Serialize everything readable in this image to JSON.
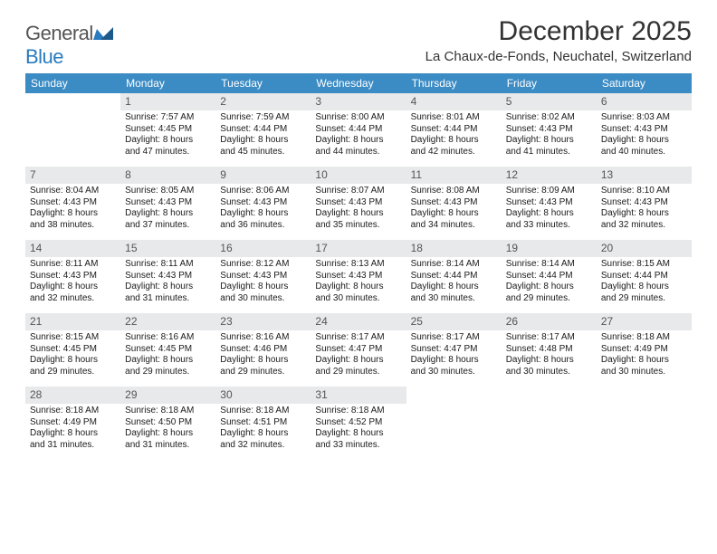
{
  "brand": {
    "part1": "General",
    "part2": "Blue"
  },
  "title": "December 2025",
  "subtitle": "La Chaux-de-Fonds, Neuchatel, Switzerland",
  "colors": {
    "header_bg": "#3b8bc4",
    "header_text": "#ffffff",
    "daynum_bg": "#e8e9eb",
    "daynum_text": "#555555",
    "divider": "#2a6a9a",
    "body_text": "#1a1a1a",
    "brand_gray": "#555555",
    "brand_blue": "#2a7bbf"
  },
  "typography": {
    "title_fontsize": 30,
    "subtitle_fontsize": 15,
    "header_fontsize": 12,
    "daynum_fontsize": 12,
    "cell_fontsize": 10
  },
  "weekdays": [
    "Sunday",
    "Monday",
    "Tuesday",
    "Wednesday",
    "Thursday",
    "Friday",
    "Saturday"
  ],
  "weeks": [
    [
      null,
      {
        "n": "1",
        "sunrise": "7:57 AM",
        "sunset": "4:45 PM",
        "dl1": "Daylight: 8 hours",
        "dl2": "and 47 minutes."
      },
      {
        "n": "2",
        "sunrise": "7:59 AM",
        "sunset": "4:44 PM",
        "dl1": "Daylight: 8 hours",
        "dl2": "and 45 minutes."
      },
      {
        "n": "3",
        "sunrise": "8:00 AM",
        "sunset": "4:44 PM",
        "dl1": "Daylight: 8 hours",
        "dl2": "and 44 minutes."
      },
      {
        "n": "4",
        "sunrise": "8:01 AM",
        "sunset": "4:44 PM",
        "dl1": "Daylight: 8 hours",
        "dl2": "and 42 minutes."
      },
      {
        "n": "5",
        "sunrise": "8:02 AM",
        "sunset": "4:43 PM",
        "dl1": "Daylight: 8 hours",
        "dl2": "and 41 minutes."
      },
      {
        "n": "6",
        "sunrise": "8:03 AM",
        "sunset": "4:43 PM",
        "dl1": "Daylight: 8 hours",
        "dl2": "and 40 minutes."
      }
    ],
    [
      {
        "n": "7",
        "sunrise": "8:04 AM",
        "sunset": "4:43 PM",
        "dl1": "Daylight: 8 hours",
        "dl2": "and 38 minutes."
      },
      {
        "n": "8",
        "sunrise": "8:05 AM",
        "sunset": "4:43 PM",
        "dl1": "Daylight: 8 hours",
        "dl2": "and 37 minutes."
      },
      {
        "n": "9",
        "sunrise": "8:06 AM",
        "sunset": "4:43 PM",
        "dl1": "Daylight: 8 hours",
        "dl2": "and 36 minutes."
      },
      {
        "n": "10",
        "sunrise": "8:07 AM",
        "sunset": "4:43 PM",
        "dl1": "Daylight: 8 hours",
        "dl2": "and 35 minutes."
      },
      {
        "n": "11",
        "sunrise": "8:08 AM",
        "sunset": "4:43 PM",
        "dl1": "Daylight: 8 hours",
        "dl2": "and 34 minutes."
      },
      {
        "n": "12",
        "sunrise": "8:09 AM",
        "sunset": "4:43 PM",
        "dl1": "Daylight: 8 hours",
        "dl2": "and 33 minutes."
      },
      {
        "n": "13",
        "sunrise": "8:10 AM",
        "sunset": "4:43 PM",
        "dl1": "Daylight: 8 hours",
        "dl2": "and 32 minutes."
      }
    ],
    [
      {
        "n": "14",
        "sunrise": "8:11 AM",
        "sunset": "4:43 PM",
        "dl1": "Daylight: 8 hours",
        "dl2": "and 32 minutes."
      },
      {
        "n": "15",
        "sunrise": "8:11 AM",
        "sunset": "4:43 PM",
        "dl1": "Daylight: 8 hours",
        "dl2": "and 31 minutes."
      },
      {
        "n": "16",
        "sunrise": "8:12 AM",
        "sunset": "4:43 PM",
        "dl1": "Daylight: 8 hours",
        "dl2": "and 30 minutes."
      },
      {
        "n": "17",
        "sunrise": "8:13 AM",
        "sunset": "4:43 PM",
        "dl1": "Daylight: 8 hours",
        "dl2": "and 30 minutes."
      },
      {
        "n": "18",
        "sunrise": "8:14 AM",
        "sunset": "4:44 PM",
        "dl1": "Daylight: 8 hours",
        "dl2": "and 30 minutes."
      },
      {
        "n": "19",
        "sunrise": "8:14 AM",
        "sunset": "4:44 PM",
        "dl1": "Daylight: 8 hours",
        "dl2": "and 29 minutes."
      },
      {
        "n": "20",
        "sunrise": "8:15 AM",
        "sunset": "4:44 PM",
        "dl1": "Daylight: 8 hours",
        "dl2": "and 29 minutes."
      }
    ],
    [
      {
        "n": "21",
        "sunrise": "8:15 AM",
        "sunset": "4:45 PM",
        "dl1": "Daylight: 8 hours",
        "dl2": "and 29 minutes."
      },
      {
        "n": "22",
        "sunrise": "8:16 AM",
        "sunset": "4:45 PM",
        "dl1": "Daylight: 8 hours",
        "dl2": "and 29 minutes."
      },
      {
        "n": "23",
        "sunrise": "8:16 AM",
        "sunset": "4:46 PM",
        "dl1": "Daylight: 8 hours",
        "dl2": "and 29 minutes."
      },
      {
        "n": "24",
        "sunrise": "8:17 AM",
        "sunset": "4:47 PM",
        "dl1": "Daylight: 8 hours",
        "dl2": "and 29 minutes."
      },
      {
        "n": "25",
        "sunrise": "8:17 AM",
        "sunset": "4:47 PM",
        "dl1": "Daylight: 8 hours",
        "dl2": "and 30 minutes."
      },
      {
        "n": "26",
        "sunrise": "8:17 AM",
        "sunset": "4:48 PM",
        "dl1": "Daylight: 8 hours",
        "dl2": "and 30 minutes."
      },
      {
        "n": "27",
        "sunrise": "8:18 AM",
        "sunset": "4:49 PM",
        "dl1": "Daylight: 8 hours",
        "dl2": "and 30 minutes."
      }
    ],
    [
      {
        "n": "28",
        "sunrise": "8:18 AM",
        "sunset": "4:49 PM",
        "dl1": "Daylight: 8 hours",
        "dl2": "and 31 minutes."
      },
      {
        "n": "29",
        "sunrise": "8:18 AM",
        "sunset": "4:50 PM",
        "dl1": "Daylight: 8 hours",
        "dl2": "and 31 minutes."
      },
      {
        "n": "30",
        "sunrise": "8:18 AM",
        "sunset": "4:51 PM",
        "dl1": "Daylight: 8 hours",
        "dl2": "and 32 minutes."
      },
      {
        "n": "31",
        "sunrise": "8:18 AM",
        "sunset": "4:52 PM",
        "dl1": "Daylight: 8 hours",
        "dl2": "and 33 minutes."
      },
      null,
      null,
      null
    ]
  ],
  "labels": {
    "sunrise": "Sunrise: ",
    "sunset": "Sunset: "
  }
}
